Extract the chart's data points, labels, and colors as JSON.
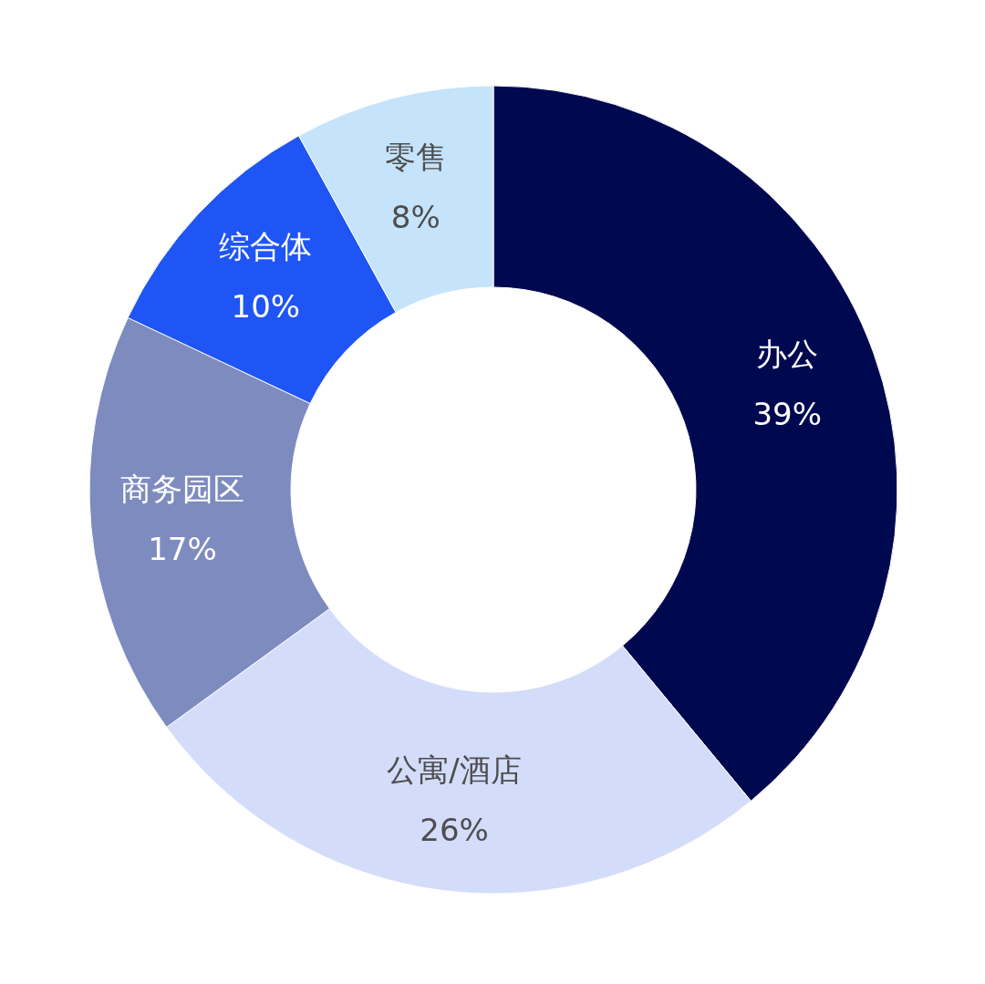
{
  "chart_data": {
    "type": "donut",
    "categories": [
      "办公",
      "公寓/酒店",
      "商务园区",
      "综合体",
      "零售"
    ],
    "values": [
      39,
      26,
      17,
      10,
      8
    ],
    "colors": [
      "#000850",
      "#d3ddfa",
      "#7d8bbf",
      "#1f55f5",
      "#c5e4fb"
    ],
    "value_labels": [
      "39%",
      "26%",
      "17%",
      "10%",
      "8%"
    ]
  }
}
